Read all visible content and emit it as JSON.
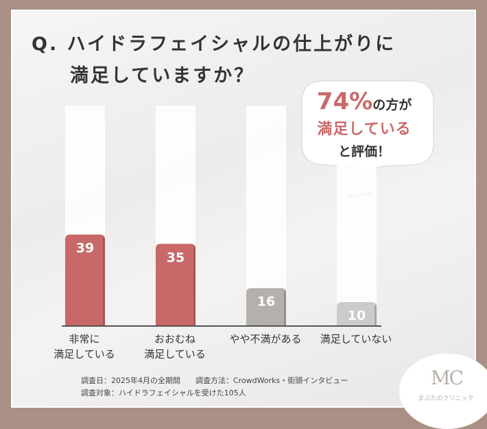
{
  "title": {
    "line1": "Q. ハイドラフェイシャルの仕上がりに",
    "line2": "満足していますか？"
  },
  "callout": {
    "percent": "74%",
    "suffix": "の方が",
    "line2": "満足している",
    "line3": "と評価！"
  },
  "chart_data": {
    "type": "bar",
    "categories": [
      "非常に\n満足している",
      "おおむね\n満足している",
      "やや不満がある",
      "満足していない"
    ],
    "values": [
      39,
      35,
      16,
      10
    ],
    "colors": [
      "#c86868",
      "#c86868",
      "#b3b0ae",
      "#cdcbc9"
    ],
    "label_colors": [
      "#ffffff",
      "#ffffff",
      "#ffffff",
      "#ffffff"
    ],
    "ylim": [
      0,
      100
    ],
    "grid": false,
    "legend": "none"
  },
  "footer": {
    "line1": "調査日：2025年4月の全期間　　調査方法：CrowdWorks・街頭インタビュー",
    "line2": "調査対象：ハイドラフェイシャルを受けた105人"
  },
  "logo": {
    "mark": "MC",
    "name": "まぶたのクリニック"
  }
}
